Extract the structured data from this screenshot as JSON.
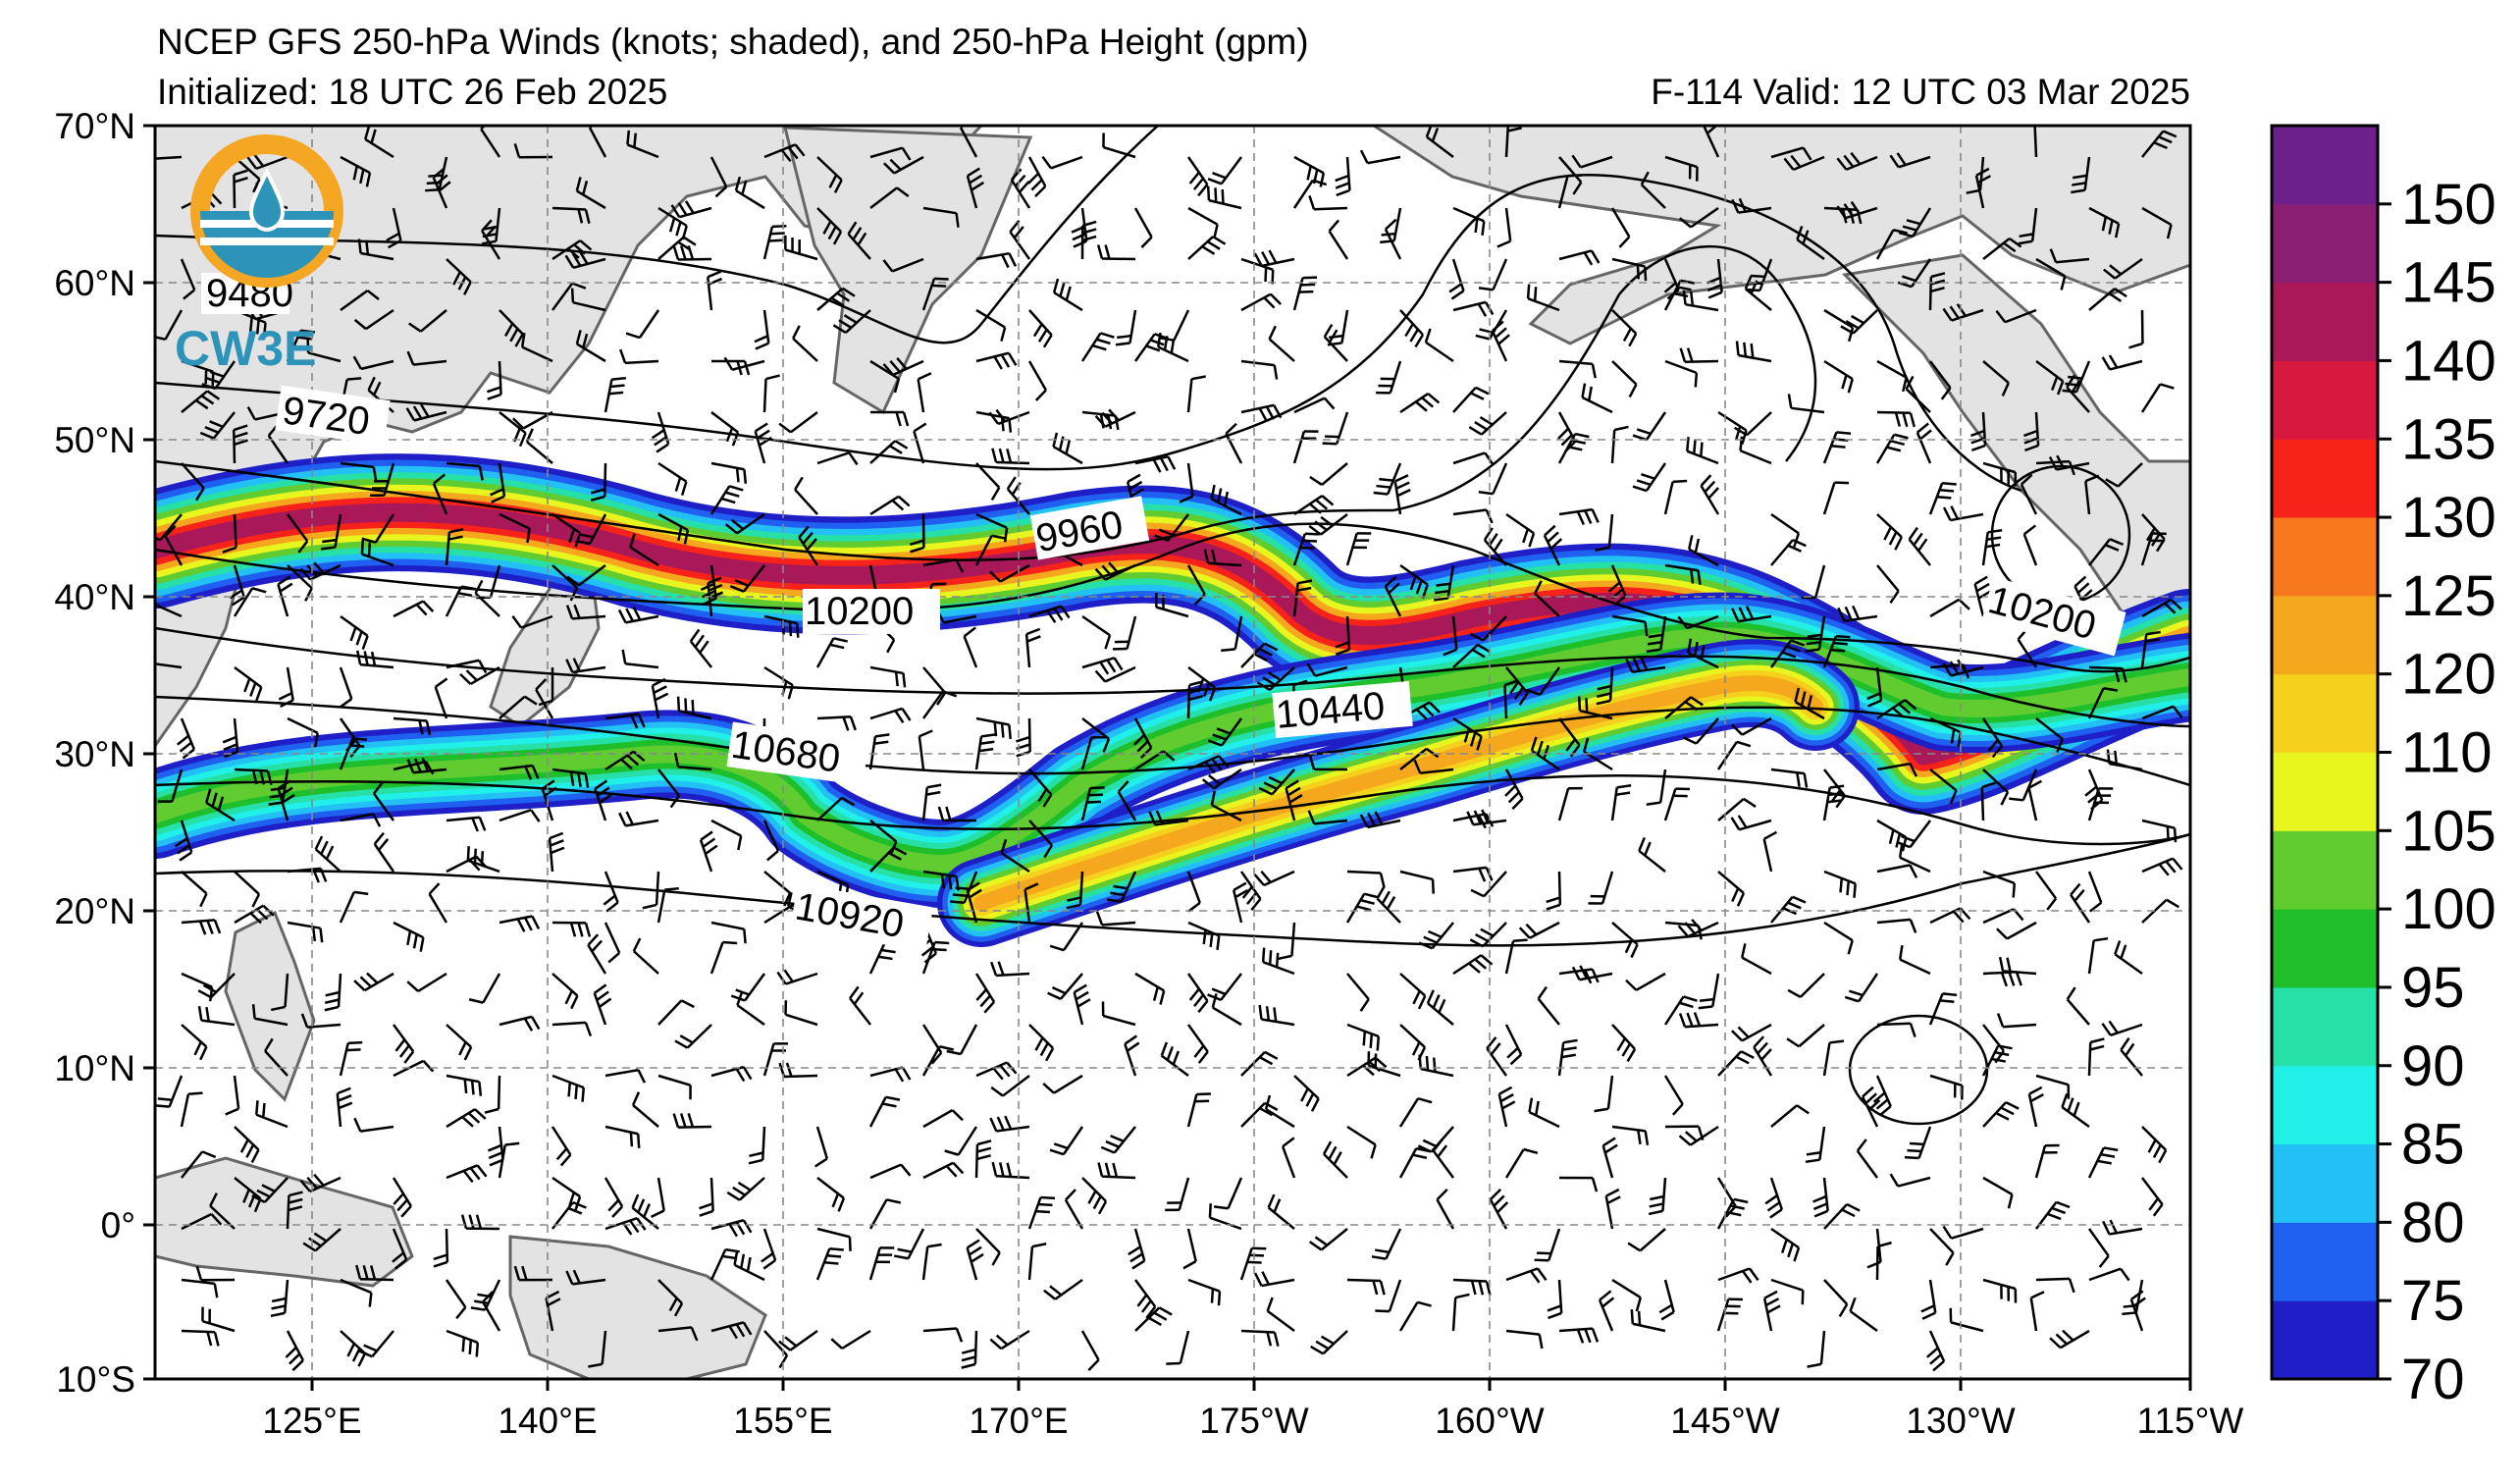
{
  "header": {
    "title": "NCEP GFS 250-hPa Winds (knots; shaded), and 250-hPa Height (gpm)",
    "initialized": "Initialized: 18 UTC 26 Feb 2025",
    "valid": "F-114  Valid: 12 UTC 03 Mar 2025"
  },
  "logo": {
    "text": "CW3E"
  },
  "axes": {
    "lat_labels": [
      "70°N",
      "60°N",
      "50°N",
      "40°N",
      "30°N",
      "20°N",
      "10°N",
      "0°",
      "10°S"
    ],
    "lon_labels": [
      "125°E",
      "140°E",
      "155°E",
      "170°E",
      "175°W",
      "160°W",
      "145°W",
      "130°W",
      "115°W"
    ]
  },
  "colorbar": {
    "labels": [
      "70",
      "75",
      "80",
      "85",
      "90",
      "95",
      "100",
      "105",
      "110",
      "120",
      "125",
      "130",
      "135",
      "140",
      "145",
      "150"
    ],
    "colors": [
      "#1f1fc8",
      "#2060f0",
      "#22c0f5",
      "#20f0e8",
      "#26e0a8",
      "#1ebf2a",
      "#60cc30",
      "#e9f51f",
      "#f5d11d",
      "#f5a81d",
      "#f7781e",
      "#f7231b",
      "#d8193f",
      "#a91859",
      "#8a1e72",
      "#6e208a"
    ]
  },
  "contours": {
    "labels": [
      "9480",
      "9720",
      "9960",
      "10200",
      "10440",
      "10680",
      "10920",
      "10200"
    ]
  },
  "colors": {
    "land": "#e3e3e3",
    "coast": "#666666",
    "grid": "#888888"
  }
}
